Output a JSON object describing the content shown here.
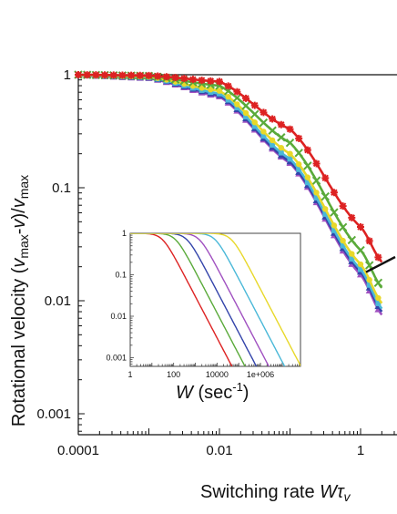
{
  "chart_data": [
    {
      "type": "line",
      "xlabel": "Switching rate Wτv",
      "ylabel": "Rotational velocity (vmax-v)/vmax",
      "x_scale": "log",
      "y_scale": "log",
      "xlim": [
        0.0001,
        2.0
      ],
      "ylim": [
        0.0007,
        1.2
      ],
      "x_ticks": [
        {
          "value": 0.0001,
          "label": "0.0001"
        },
        {
          "value": 0.01,
          "label": "0.01"
        },
        {
          "value": 1,
          "label": "1"
        }
      ],
      "y_ticks": [
        {
          "value": 1,
          "label": "1"
        },
        {
          "value": 0.1,
          "label": "0.1"
        },
        {
          "value": 0.01,
          "label": "0.01"
        },
        {
          "value": 0.001,
          "label": "0.001"
        }
      ],
      "grid": false,
      "legend": "none",
      "series": [
        {
          "color": "#dd2222",
          "marker": "star",
          "values": [
            [
              0.0001,
              1.0
            ],
            [
              0.001,
              0.985
            ],
            [
              0.01,
              0.87
            ],
            [
              0.1,
              0.33
            ],
            [
              1,
              0.045
            ],
            [
              2,
              0.022
            ]
          ]
        },
        {
          "color": "#5aaa3a",
          "marker": "x",
          "values": [
            [
              0.0001,
              1.0
            ],
            [
              0.001,
              0.975
            ],
            [
              0.01,
              0.8
            ],
            [
              0.1,
              0.25
            ],
            [
              1,
              0.028
            ],
            [
              2,
              0.013
            ]
          ]
        },
        {
          "color": "#e8d82a",
          "marker": "circle",
          "values": [
            [
              0.0001,
              0.995
            ],
            [
              0.001,
              0.96
            ],
            [
              0.01,
              0.72
            ],
            [
              0.1,
              0.2
            ],
            [
              1,
              0.021
            ],
            [
              2,
              0.0095
            ]
          ]
        },
        {
          "color": "#4ab8d8",
          "marker": "square",
          "values": [
            [
              0.0001,
              0.99
            ],
            [
              0.001,
              0.95
            ],
            [
              0.01,
              0.68
            ],
            [
              0.1,
              0.18
            ],
            [
              1,
              0.019
            ],
            [
              2,
              0.0085
            ]
          ]
        },
        {
          "color": "#3344aa",
          "marker": "triangle",
          "values": [
            [
              0.0001,
              0.99
            ],
            [
              0.001,
              0.94
            ],
            [
              0.01,
              0.66
            ],
            [
              0.1,
              0.17
            ],
            [
              1,
              0.018
            ],
            [
              2,
              0.008
            ]
          ]
        },
        {
          "color": "#a050c0",
          "marker": "triangle",
          "values": [
            [
              0.0001,
              0.985
            ],
            [
              0.001,
              0.93
            ],
            [
              0.01,
              0.64
            ],
            [
              0.1,
              0.165
            ],
            [
              1,
              0.017
            ],
            [
              2,
              0.0075
            ]
          ]
        }
      ],
      "reference_line": {
        "color": "#111111",
        "values": [
          [
            1.0,
            0.035
          ],
          [
            2.0,
            0.0087
          ]
        ]
      }
    },
    {
      "type": "line",
      "xlabel": "W (sec-1)",
      "ylabel": "",
      "x_scale": "log",
      "y_scale": "log",
      "xlim": [
        1,
        100000000
      ],
      "ylim": [
        0.0005,
        1.1
      ],
      "x_ticks": [
        {
          "value": 1,
          "label": "1"
        },
        {
          "value": 100,
          "label": "100"
        },
        {
          "value": 10000,
          "label": "10000"
        },
        {
          "value": 1000000,
          "label": "1e+006"
        }
      ],
      "y_ticks": [
        {
          "value": 1,
          "label": "1"
        },
        {
          "value": 0.1,
          "label": "0.1"
        },
        {
          "value": 0.01,
          "label": "0.01"
        },
        {
          "value": 0.001,
          "label": "0.001"
        }
      ],
      "grid": false,
      "legend": "none",
      "series": [
        {
          "color": "#dd2222",
          "knee": 30
        },
        {
          "color": "#5aaa3a",
          "knee": 120
        },
        {
          "color": "#3344aa",
          "knee": 400
        },
        {
          "color": "#a050c0",
          "knee": 1500
        },
        {
          "color": "#4ab8d8",
          "knee": 8000
        },
        {
          "color": "#e8d82a",
          "knee": 45000
        }
      ]
    }
  ]
}
